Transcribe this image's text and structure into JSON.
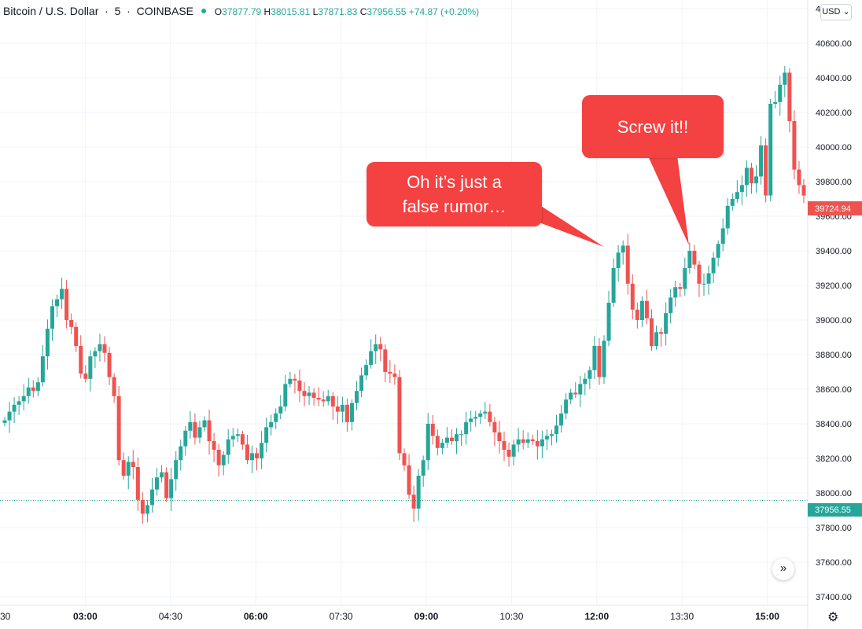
{
  "header": {
    "symbol": "Bitcoin / U.S. Dollar",
    "interval": "5",
    "exchange": "COINBASE",
    "open_key": "O",
    "open": "37877.79",
    "high_key": "H",
    "high": "38015.81",
    "low_key": "L",
    "low": "37871.83",
    "close_key": "C",
    "close": "37956.55",
    "change": "+74.87 (+0.20%)"
  },
  "currency_button": "USD",
  "scroll_icon": "double-chevron-right-icon",
  "settings_icon": "gear-icon",
  "colors": {
    "up": "#26a69a",
    "down": "#ef5350",
    "callout": "#f44141",
    "grid": "#f0f3fa"
  },
  "callouts": {
    "first": {
      "line1": "Oh it’s just a",
      "line2": "false rumor…"
    },
    "second": {
      "line1": "Screw it!!"
    }
  },
  "chart_data": {
    "type": "candlestick",
    "title": "Bitcoin / U.S. Dollar",
    "ylim": [
      37350,
      40850
    ],
    "y_ticks": [
      "40800.00",
      "40600.00",
      "40400.00",
      "40200.00",
      "40000.00",
      "39800.00",
      "39600.00",
      "39400.00",
      "39200.00",
      "39000.00",
      "38800.00",
      "38600.00",
      "38400.00",
      "38200.00",
      "38000.00",
      "37800.00",
      "37600.00",
      "37400.00"
    ],
    "x_ticks": [
      "30",
      "03:00",
      "04:30",
      "06:00",
      "07:30",
      "09:00",
      "10:30",
      "12:00",
      "13:30",
      "15:00"
    ],
    "bold_x_ticks": [
      "03:00",
      "06:00",
      "09:00",
      "12:00",
      "15:00"
    ],
    "current_price_label": "39724.94",
    "reference_price_label": "37956.55",
    "grid": true,
    "prices": [
      38420,
      38470,
      38510,
      38530,
      38560,
      38610,
      38590,
      38640,
      38790,
      38950,
      39080,
      39120,
      39180,
      39000,
      38960,
      38850,
      38690,
      38660,
      38790,
      38820,
      38860,
      38810,
      38670,
      38560,
      38190,
      38100,
      38180,
      38150,
      37960,
      37880,
      37930,
      38020,
      38090,
      38120,
      37970,
      38080,
      38190,
      38270,
      38360,
      38410,
      38320,
      38380,
      38420,
      38300,
      38250,
      38160,
      38220,
      38310,
      38330,
      38340,
      38280,
      38190,
      38230,
      38200,
      38290,
      38380,
      38410,
      38460,
      38500,
      38630,
      38660,
      38650,
      38590,
      38560,
      38580,
      38550,
      38540,
      38530,
      38560,
      38500,
      38470,
      38510,
      38410,
      38520,
      38590,
      38680,
      38740,
      38820,
      38860,
      38830,
      38700,
      38690,
      38670,
      38230,
      38160,
      37990,
      37910,
      38100,
      38190,
      38400,
      38330,
      38260,
      38290,
      38320,
      38300,
      38340,
      38340,
      38410,
      38430,
      38440,
      38460,
      38470,
      38410,
      38350,
      38300,
      38250,
      38210,
      38280,
      38310,
      38290,
      38310,
      38300,
      38270,
      38310,
      38330,
      38340,
      38390,
      38460,
      38540,
      38580,
      38570,
      38630,
      38660,
      38710,
      38850,
      38670,
      38880,
      39100,
      39300,
      39390,
      39430,
      39210,
      39060,
      39000,
      39110,
      39010,
      38850,
      38930,
      38920,
      39040,
      39130,
      39190,
      39180,
      39300,
      39400,
      39320,
      39210,
      39210,
      39270,
      39360,
      39440,
      39530,
      39660,
      39700,
      39740,
      39780,
      39880,
      39790,
      39830,
      40010,
      39720,
      40250,
      40260,
      40360,
      40430,
      40150,
      39870,
      39780,
      39720
    ]
  }
}
